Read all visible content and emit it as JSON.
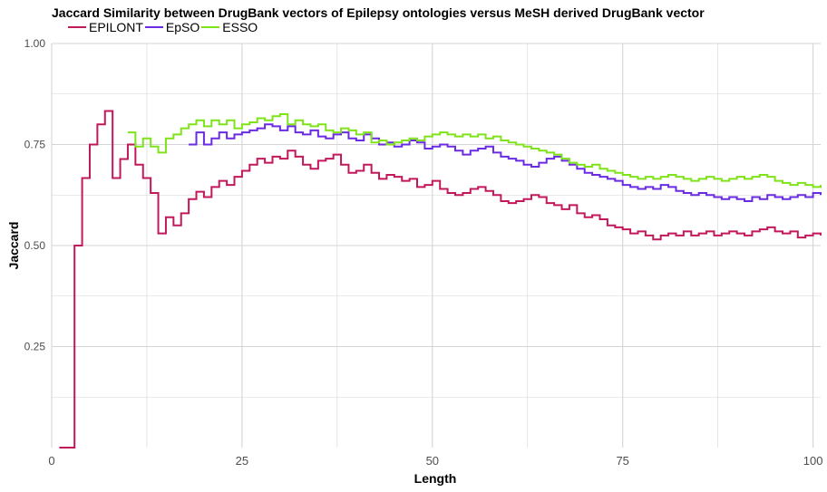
{
  "chart_data": {
    "type": "line",
    "step": true,
    "title": "Jaccard Similarity between DrugBank vectors of Epilepsy ontologies versus MeSH derived DrugBank vector",
    "xlabel": "Length",
    "ylabel": "Jaccard",
    "xlim": [
      0,
      101
    ],
    "ylim": [
      0,
      1
    ],
    "x_ticks": [
      0,
      25,
      50,
      75,
      100
    ],
    "x_tick_labels": [
      "0",
      "25",
      "50",
      "75",
      "100"
    ],
    "y_ticks": [
      0.25,
      0.5,
      0.75,
      1.0
    ],
    "y_tick_labels": [
      "0.25",
      "0.50",
      "0.75",
      "1.00"
    ],
    "grid": true,
    "legend_position": "top-left",
    "background": "#ffffff",
    "grid_color": "#d4d4d4",
    "series": [
      {
        "name": "EPILONT",
        "color": "#c2185b",
        "x": [
          1,
          2,
          3,
          4,
          5,
          6,
          7,
          8,
          9,
          10,
          11,
          12,
          13,
          14,
          15,
          16,
          17,
          18,
          19,
          20,
          21,
          22,
          23,
          24,
          25,
          26,
          27,
          28,
          29,
          30,
          31,
          32,
          33,
          34,
          35,
          36,
          37,
          38,
          39,
          40,
          41,
          42,
          43,
          44,
          45,
          46,
          47,
          48,
          49,
          50,
          51,
          52,
          53,
          54,
          55,
          56,
          57,
          58,
          59,
          60,
          61,
          62,
          63,
          64,
          65,
          66,
          67,
          68,
          69,
          70,
          71,
          72,
          73,
          74,
          75,
          76,
          77,
          78,
          79,
          80,
          81,
          82,
          83,
          84,
          85,
          86,
          87,
          88,
          89,
          90,
          91,
          92,
          93,
          94,
          95,
          96,
          97,
          98,
          99,
          100,
          101
        ],
        "values": [
          0,
          0,
          0.5,
          0.667,
          0.75,
          0.8,
          0.833,
          0.667,
          0.714,
          0.75,
          0.7,
          0.667,
          0.63,
          0.53,
          0.57,
          0.55,
          0.58,
          0.615,
          0.633,
          0.62,
          0.645,
          0.66,
          0.65,
          0.67,
          0.685,
          0.7,
          0.715,
          0.705,
          0.72,
          0.715,
          0.735,
          0.72,
          0.7,
          0.69,
          0.71,
          0.715,
          0.725,
          0.7,
          0.68,
          0.685,
          0.7,
          0.68,
          0.665,
          0.675,
          0.67,
          0.66,
          0.665,
          0.645,
          0.65,
          0.66,
          0.64,
          0.63,
          0.625,
          0.63,
          0.64,
          0.645,
          0.635,
          0.625,
          0.61,
          0.605,
          0.61,
          0.615,
          0.625,
          0.62,
          0.605,
          0.6,
          0.59,
          0.6,
          0.58,
          0.57,
          0.575,
          0.565,
          0.55,
          0.545,
          0.54,
          0.53,
          0.535,
          0.525,
          0.515,
          0.525,
          0.53,
          0.525,
          0.535,
          0.525,
          0.53,
          0.535,
          0.525,
          0.53,
          0.535,
          0.53,
          0.525,
          0.535,
          0.54,
          0.545,
          0.535,
          0.53,
          0.535,
          0.52,
          0.525,
          0.53,
          0.525
        ]
      },
      {
        "name": "EpSO",
        "color": "#6a2be2",
        "x": [
          18,
          19,
          20,
          21,
          22,
          23,
          24,
          25,
          26,
          27,
          28,
          29,
          30,
          31,
          32,
          33,
          34,
          35,
          36,
          37,
          38,
          39,
          40,
          41,
          42,
          43,
          44,
          45,
          46,
          47,
          48,
          49,
          50,
          51,
          52,
          53,
          54,
          55,
          56,
          57,
          58,
          59,
          60,
          61,
          62,
          63,
          64,
          65,
          66,
          67,
          68,
          69,
          70,
          71,
          72,
          73,
          74,
          75,
          76,
          77,
          78,
          79,
          80,
          81,
          82,
          83,
          84,
          85,
          86,
          87,
          88,
          89,
          90,
          91,
          92,
          93,
          94,
          95,
          96,
          97,
          98,
          99,
          100,
          101
        ],
        "values": [
          0.75,
          0.78,
          0.75,
          0.765,
          0.78,
          0.765,
          0.775,
          0.78,
          0.785,
          0.79,
          0.8,
          0.795,
          0.785,
          0.795,
          0.78,
          0.775,
          0.785,
          0.77,
          0.765,
          0.775,
          0.78,
          0.765,
          0.76,
          0.775,
          0.765,
          0.75,
          0.755,
          0.745,
          0.75,
          0.76,
          0.755,
          0.74,
          0.745,
          0.75,
          0.745,
          0.735,
          0.725,
          0.735,
          0.74,
          0.745,
          0.73,
          0.72,
          0.715,
          0.71,
          0.7,
          0.695,
          0.705,
          0.715,
          0.72,
          0.71,
          0.7,
          0.69,
          0.68,
          0.675,
          0.67,
          0.665,
          0.66,
          0.65,
          0.645,
          0.64,
          0.645,
          0.64,
          0.65,
          0.645,
          0.635,
          0.63,
          0.625,
          0.63,
          0.625,
          0.62,
          0.615,
          0.62,
          0.615,
          0.61,
          0.62,
          0.615,
          0.625,
          0.62,
          0.615,
          0.62,
          0.625,
          0.62,
          0.63,
          0.625
        ]
      },
      {
        "name": "ESSO",
        "color": "#7fe31a",
        "x": [
          10,
          11,
          12,
          13,
          14,
          15,
          16,
          17,
          18,
          19,
          20,
          21,
          22,
          23,
          24,
          25,
          26,
          27,
          28,
          29,
          30,
          31,
          32,
          33,
          34,
          35,
          36,
          37,
          38,
          39,
          40,
          41,
          42,
          43,
          44,
          45,
          46,
          47,
          48,
          49,
          50,
          51,
          52,
          53,
          54,
          55,
          56,
          57,
          58,
          59,
          60,
          61,
          62,
          63,
          64,
          65,
          66,
          67,
          68,
          69,
          70,
          71,
          72,
          73,
          74,
          75,
          76,
          77,
          78,
          79,
          80,
          81,
          82,
          83,
          84,
          85,
          86,
          87,
          88,
          89,
          90,
          91,
          92,
          93,
          94,
          95,
          96,
          97,
          98,
          99,
          100,
          101
        ],
        "values": [
          0.78,
          0.745,
          0.765,
          0.745,
          0.73,
          0.765,
          0.775,
          0.79,
          0.8,
          0.81,
          0.795,
          0.81,
          0.8,
          0.81,
          0.79,
          0.8,
          0.805,
          0.815,
          0.81,
          0.82,
          0.825,
          0.8,
          0.81,
          0.8,
          0.795,
          0.8,
          0.785,
          0.78,
          0.79,
          0.785,
          0.775,
          0.78,
          0.755,
          0.76,
          0.75,
          0.755,
          0.76,
          0.765,
          0.76,
          0.77,
          0.775,
          0.78,
          0.775,
          0.77,
          0.775,
          0.77,
          0.775,
          0.765,
          0.77,
          0.76,
          0.755,
          0.75,
          0.745,
          0.74,
          0.735,
          0.73,
          0.725,
          0.715,
          0.705,
          0.7,
          0.695,
          0.7,
          0.69,
          0.685,
          0.68,
          0.675,
          0.67,
          0.665,
          0.67,
          0.665,
          0.67,
          0.675,
          0.67,
          0.665,
          0.66,
          0.665,
          0.67,
          0.665,
          0.66,
          0.665,
          0.67,
          0.665,
          0.67,
          0.675,
          0.67,
          0.66,
          0.655,
          0.65,
          0.655,
          0.65,
          0.645,
          0.65
        ]
      }
    ]
  }
}
